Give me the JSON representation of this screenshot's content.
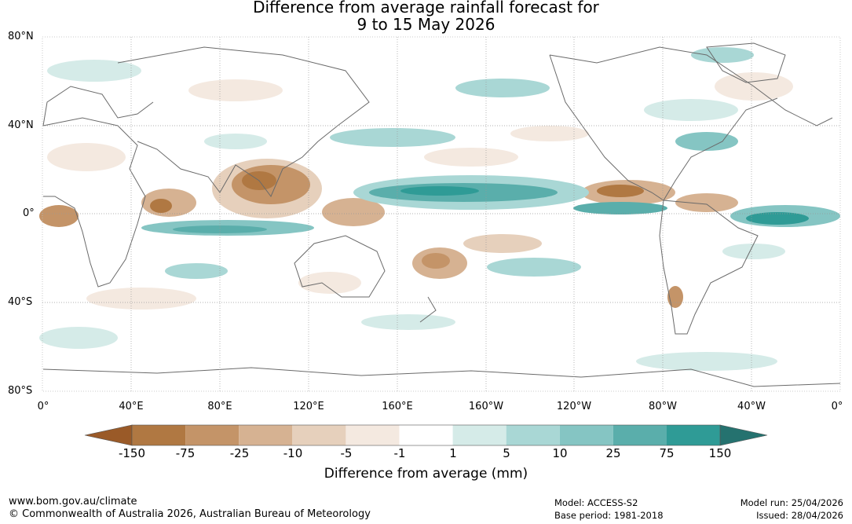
{
  "title_line1": "Difference from average rainfall forecast for",
  "title_line2": "9 to 15 May 2026",
  "lat_labels": [
    "80°N",
    "40°N",
    "0°",
    "40°S",
    "80°S"
  ],
  "lon_labels": [
    "0°",
    "40°E",
    "80°E",
    "120°E",
    "160°E",
    "160°W",
    "120°W",
    "80°W",
    "40°W",
    "0°"
  ],
  "colorbar": {
    "labels": [
      "-150",
      "-75",
      "-25",
      "-10",
      "-5",
      "-1",
      "1",
      "5",
      "10",
      "25",
      "75",
      "150"
    ],
    "colors": [
      "#9a5a28",
      "#b07842",
      "#c49468",
      "#d6b292",
      "#e6d0bc",
      "#f4e9e0",
      "#ffffff",
      "#d5ebe8",
      "#a9d7d5",
      "#85c5c3",
      "#5aaeab",
      "#2f9b96",
      "#25726f"
    ],
    "title": "Difference from average (mm)"
  },
  "footer": {
    "url": "www.bom.gov.au/climate",
    "copyright": "© Commonwealth of Australia 2026, Australian Bureau of Meteorology",
    "model": "Model: ACCESS-S2",
    "base_period": "Base period: 1981-2018",
    "model_run": "Model run: 25/04/2026",
    "issued": "Issued: 28/04/2026"
  }
}
